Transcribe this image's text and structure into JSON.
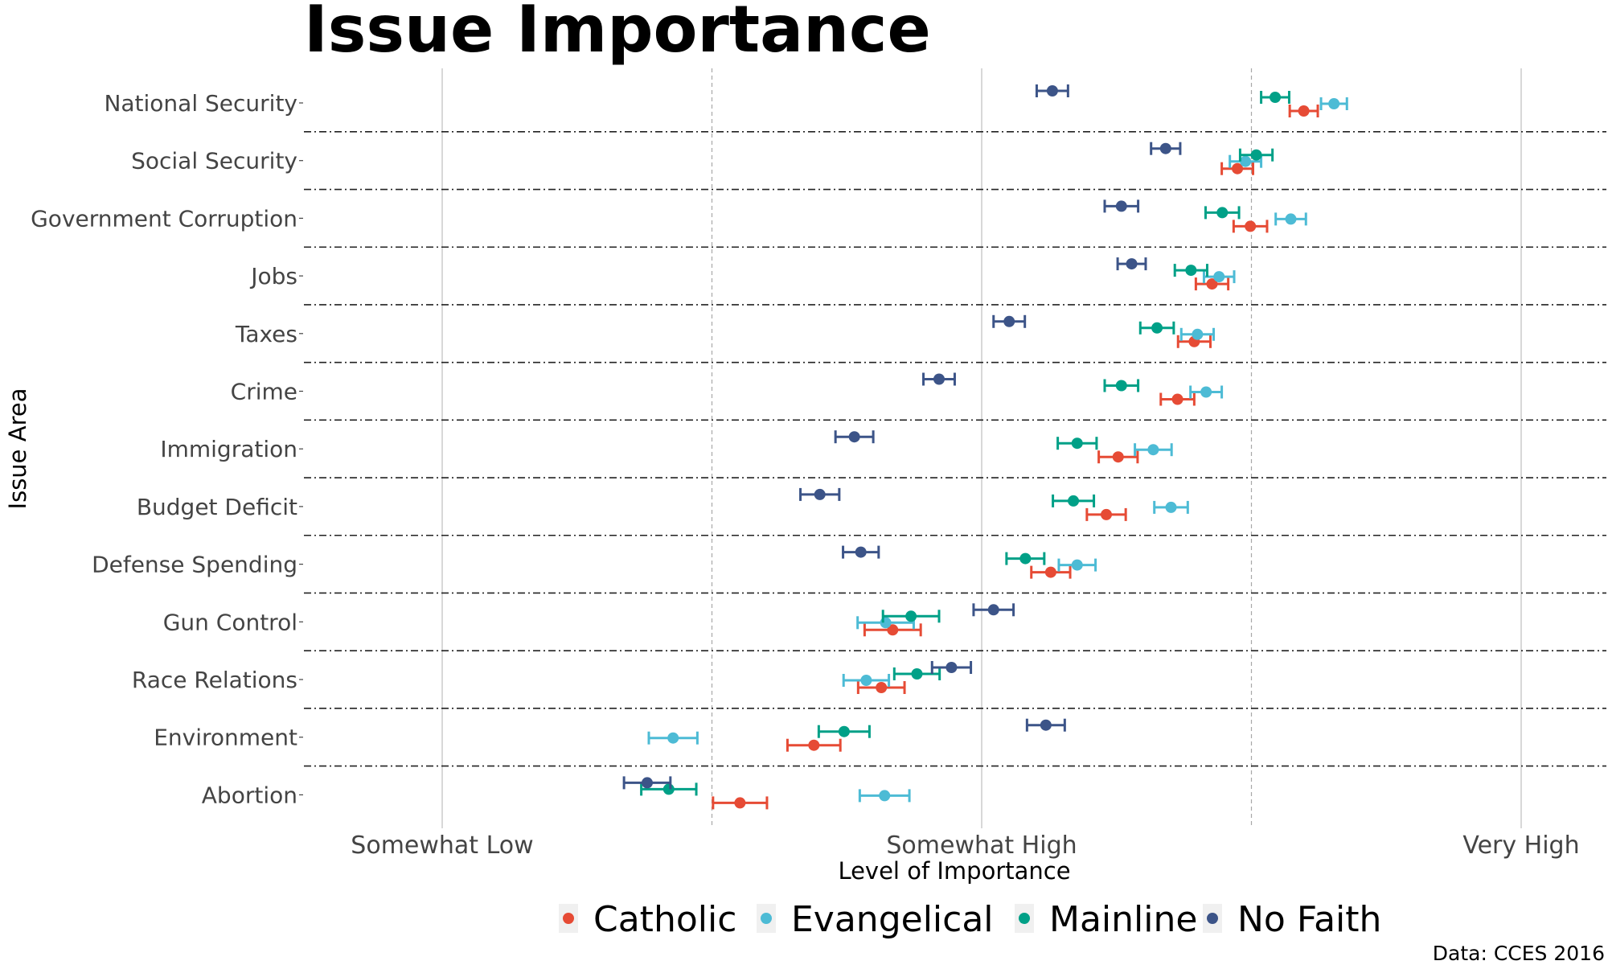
{
  "chart_data": {
    "type": "scatter",
    "title": "Issue Importance",
    "xlabel": "Level of Importance",
    "ylabel": "Issue Area",
    "caption": "Data: CCES 2016",
    "xlim": [
      1.8,
      4.15
    ],
    "x_ticks": [
      {
        "value": 2,
        "label": "Somewhat Low"
      },
      {
        "value": 3,
        "label": "Somewhat High"
      },
      {
        "value": 4,
        "label": "Very High"
      }
    ],
    "x_minor_ticks": [
      2.5,
      3.5
    ],
    "legend_position": "bottom",
    "categories": [
      "National Security",
      "Social Security",
      "Government Corruption",
      "Jobs",
      "Taxes",
      "Crime",
      "Immigration",
      "Budget Deficit",
      "Defense Spending",
      "Gun Control",
      "Race Relations",
      "Environment",
      "Abortion"
    ],
    "series": [
      {
        "name": "Catholic",
        "color": "#E64B35",
        "values": [
          3.597,
          3.474,
          3.498,
          3.427,
          3.394,
          3.363,
          3.253,
          3.231,
          3.128,
          2.835,
          2.814,
          2.689,
          2.552
        ],
        "ci": [
          0.026,
          0.029,
          0.031,
          0.03,
          0.03,
          0.031,
          0.036,
          0.036,
          0.036,
          0.052,
          0.043,
          0.049,
          0.05
        ]
      },
      {
        "name": "Evangelical",
        "color": "#4DBBD5",
        "values": [
          3.653,
          3.489,
          3.573,
          3.44,
          3.4,
          3.416,
          3.318,
          3.351,
          3.177,
          2.822,
          2.786,
          2.428,
          2.82
        ],
        "ci": [
          0.024,
          0.029,
          0.028,
          0.028,
          0.03,
          0.029,
          0.034,
          0.031,
          0.034,
          0.052,
          0.042,
          0.045,
          0.046
        ]
      },
      {
        "name": "Mainline",
        "color": "#00A087",
        "values": [
          3.544,
          3.509,
          3.446,
          3.388,
          3.325,
          3.259,
          3.177,
          3.17,
          3.081,
          2.869,
          2.88,
          2.745,
          2.42
        ],
        "ci": [
          0.026,
          0.03,
          0.031,
          0.03,
          0.031,
          0.031,
          0.036,
          0.038,
          0.035,
          0.052,
          0.042,
          0.047,
          0.051
        ]
      },
      {
        "name": "No Faith",
        "color": "#3C5488",
        "values": [
          3.131,
          3.341,
          3.259,
          3.278,
          3.051,
          2.921,
          2.764,
          2.7,
          2.776,
          3.022,
          2.944,
          3.119,
          2.38
        ],
        "ci": [
          0.029,
          0.027,
          0.031,
          0.026,
          0.029,
          0.029,
          0.035,
          0.036,
          0.033,
          0.037,
          0.036,
          0.035,
          0.043
        ]
      }
    ]
  }
}
